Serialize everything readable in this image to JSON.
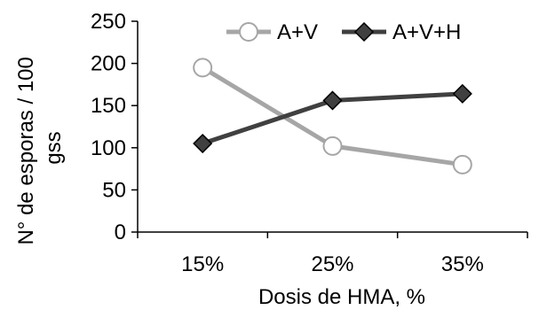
{
  "chart_data": {
    "type": "line",
    "categories": [
      "15%",
      "25%",
      "35%"
    ],
    "series": [
      {
        "name": "A+V",
        "values": [
          195,
          102,
          80
        ],
        "color": "#a6a6a6",
        "marker": "circle"
      },
      {
        "name": "A+V+H",
        "values": [
          105,
          156,
          164
        ],
        "color": "#404040",
        "marker": "diamond"
      }
    ],
    "xlabel": "Dosis de HMA, %",
    "ylabel": "N° de esporas / 100 gss",
    "ylim": [
      0,
      250
    ],
    "yticks": [
      0,
      50,
      100,
      150,
      200,
      250
    ],
    "grid": false,
    "legend": "top"
  }
}
